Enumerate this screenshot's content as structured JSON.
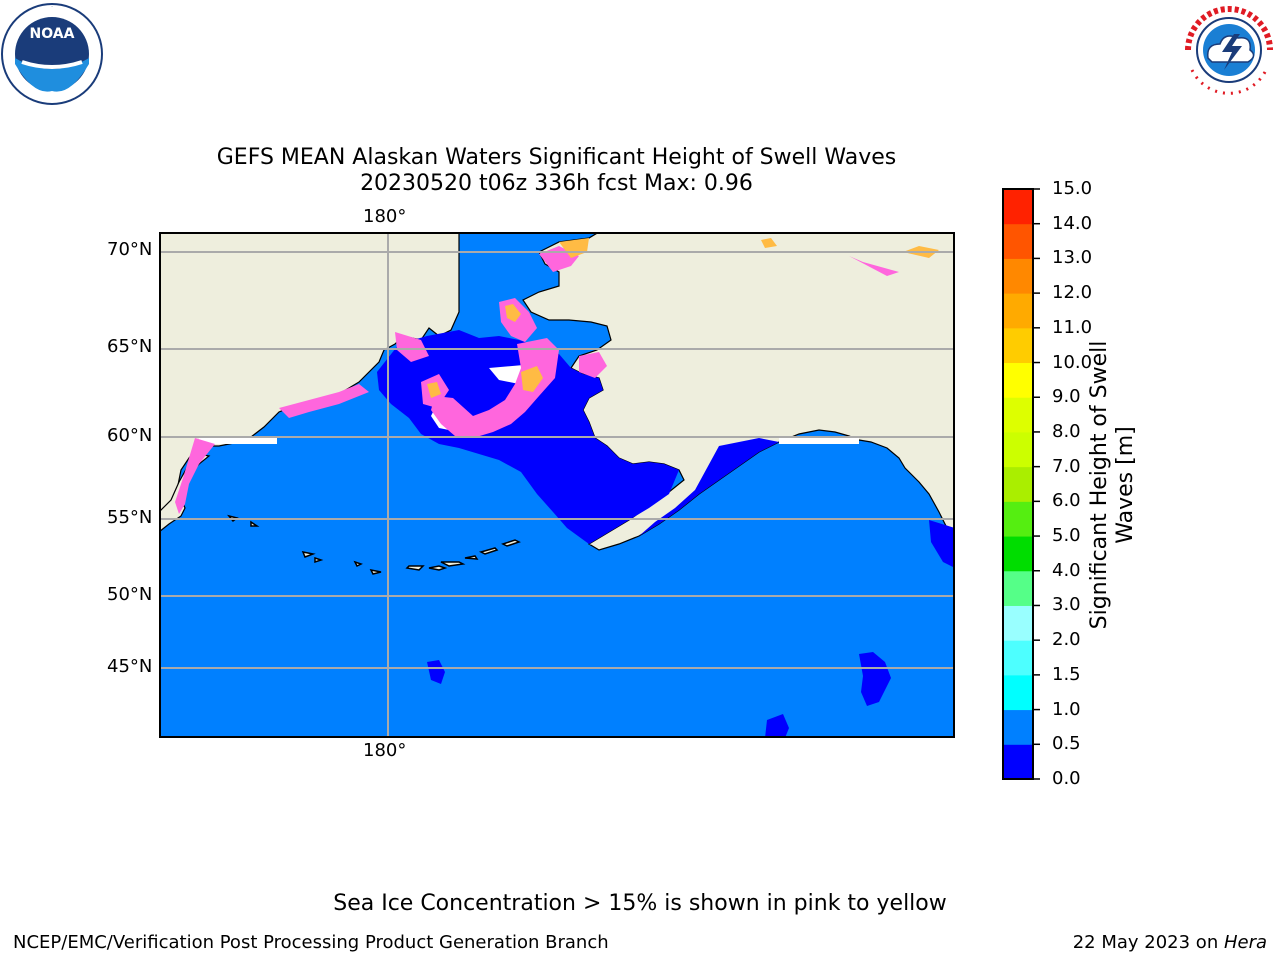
{
  "title": {
    "line1": "GEFS MEAN Alaskan Waters Significant Height of Swell Waves",
    "line2": "20230520 t06z 336h fcst   Max: 0.96"
  },
  "map": {
    "longitude_label": "180°",
    "latitude_labels": [
      "70°N",
      "65°N",
      "60°N",
      "55°N",
      "50°N",
      "45°N"
    ],
    "colors": {
      "ocean_low": "#0000ff",
      "ocean": "#0080ff",
      "land": "#eeeedd",
      "ice_pink": "#ff66dd",
      "ice_orange": "#ffbb44",
      "grid": "#aaaaaa",
      "coast": "#000000"
    }
  },
  "colorbar": {
    "label": "Significant Height of Swell Waves [m]",
    "ticks": [
      "0.0",
      "0.5",
      "1.0",
      "1.5",
      "2.0",
      "3.0",
      "4.0",
      "5.0",
      "6.0",
      "7.0",
      "8.0",
      "9.0",
      "10.0",
      "11.0",
      "12.0",
      "13.0",
      "14.0",
      "15.0"
    ],
    "colors": [
      "#0000ff",
      "#0080ff",
      "#00ffff",
      "#4dffff",
      "#99ffff",
      "#55ff88",
      "#00dd00",
      "#55ee11",
      "#aaee00",
      "#ccff00",
      "#ddff00",
      "#ffff00",
      "#ffcc00",
      "#ffaa00",
      "#ff8800",
      "#ff5500",
      "#ff2200"
    ]
  },
  "logos": {
    "left": {
      "text": "NOAA",
      "ring": "NATIONAL OCEANIC AND ATMOSPHERIC ADMINISTRATION · U.S. DEPARTMENT OF COMMERCE"
    },
    "right": {
      "ring": "NATIONAL WEATHER SERVICE"
    }
  },
  "notes": {
    "sea_ice": "Sea Ice Concentration > 15% is shown in pink to yellow",
    "footer_left": "NCEP/EMC/Verification Post Processing Product Generation Branch",
    "footer_date": "22 May 2023 on ",
    "footer_machine": "Hera"
  }
}
